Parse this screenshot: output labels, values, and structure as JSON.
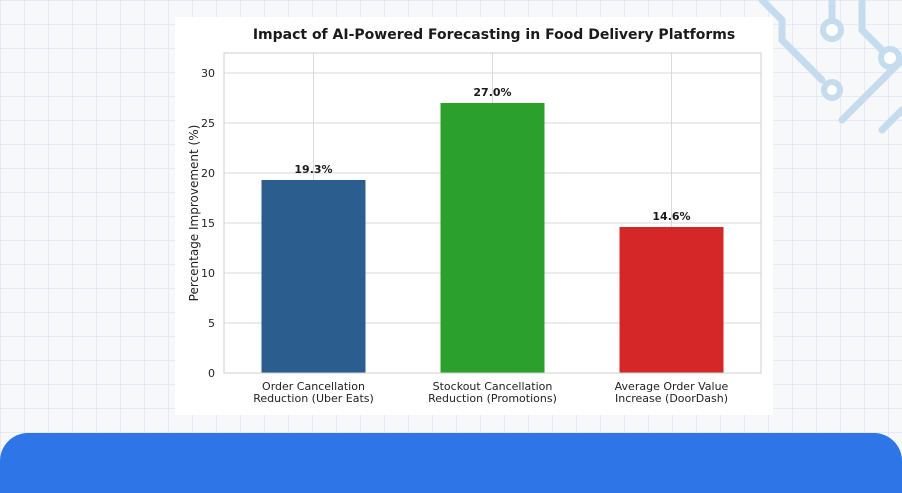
{
  "chart_data": {
    "type": "bar",
    "title": "Impact of AI-Powered Forecasting in Food Delivery Platforms",
    "xlabel": "",
    "ylabel": "Percentage Improvement (%)",
    "ylim": [
      0,
      32
    ],
    "yticks": [
      "0",
      "5",
      "10",
      "15",
      "20",
      "25",
      "30"
    ],
    "grid": true,
    "categories": [
      [
        "Order Cancellation",
        "Reduction (Uber Eats)"
      ],
      [
        "Stockout Cancellation",
        "Reduction (Promotions)"
      ],
      [
        "Average Order Value",
        "Increase (DoorDash)"
      ]
    ],
    "values": [
      19.3,
      27.0,
      14.6
    ],
    "data_labels": [
      "19.3%",
      "27.0%",
      "14.6%"
    ],
    "colors": [
      "#2c5d8f",
      "#2ca02c",
      "#d62728"
    ]
  },
  "theme": {
    "accent_band": "#2e75e8",
    "decor_stroke": "#c5dcef"
  }
}
